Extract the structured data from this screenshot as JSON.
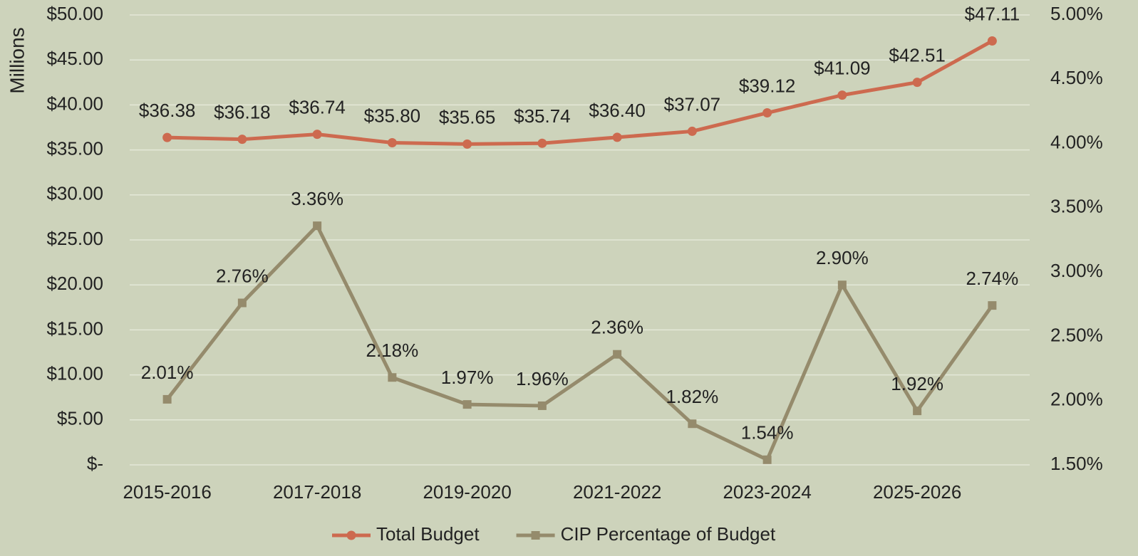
{
  "chart_data": {
    "type": "line",
    "y_axis_label": "Millions",
    "categories": [
      "2015-2016",
      null,
      "2017-2018",
      null,
      "2019-2020",
      null,
      "2021-2022",
      null,
      "2023-2024",
      null,
      "2025-2026",
      null
    ],
    "series": [
      {
        "name": "Total Budget",
        "color": "#cd6a4f",
        "marker": "circle",
        "values": [
          36.38,
          36.18,
          36.74,
          35.8,
          35.65,
          35.74,
          36.4,
          37.07,
          39.12,
          41.09,
          42.51,
          47.11
        ],
        "value_labels": [
          "$36.38",
          "$36.18",
          "$36.74",
          "$35.80",
          "$35.65",
          "$35.74",
          "$36.40",
          "$37.07",
          "$39.12",
          "$41.09",
          "$42.51",
          "$47.11"
        ]
      },
      {
        "name": "CIP Percentage of Budget",
        "color": "#958b6c",
        "marker": "square",
        "axis": "y2",
        "values": [
          2.01,
          2.76,
          3.36,
          2.18,
          1.97,
          1.96,
          2.36,
          1.82,
          1.54,
          2.9,
          1.92,
          2.74
        ],
        "value_labels": [
          "2.01%",
          "2.76%",
          "3.36%",
          "2.18%",
          "1.97%",
          "1.96%",
          "2.36%",
          "1.82%",
          "1.54%",
          "2.90%",
          "1.92%",
          "2.74%"
        ]
      }
    ],
    "ylim": [
      0,
      50
    ],
    "yticks": [
      {
        "value": 0,
        "label": "$-"
      },
      {
        "value": 5,
        "label": "$5.00"
      },
      {
        "value": 10,
        "label": "$10.00"
      },
      {
        "value": 15,
        "label": "$15.00"
      },
      {
        "value": 20,
        "label": "$20.00"
      },
      {
        "value": 25,
        "label": "$25.00"
      },
      {
        "value": 30,
        "label": "$30.00"
      },
      {
        "value": 35,
        "label": "$35.00"
      },
      {
        "value": 40,
        "label": "$40.00"
      },
      {
        "value": 45,
        "label": "$45.00"
      },
      {
        "value": 50,
        "label": "$50.00"
      }
    ],
    "y2lim": [
      1.5,
      5
    ],
    "y2ticks": [
      {
        "value": 1.5,
        "label": "1.50%"
      },
      {
        "value": 2,
        "label": "2.00%"
      },
      {
        "value": 2.5,
        "label": "2.50%"
      },
      {
        "value": 3,
        "label": "3.00%"
      },
      {
        "value": 3.5,
        "label": "3.50%"
      },
      {
        "value": 4,
        "label": "4.00%"
      },
      {
        "value": 4.5,
        "label": "4.50%"
      },
      {
        "value": 5,
        "label": "5.00%"
      }
    ],
    "grid": true,
    "legend": "bottom"
  }
}
